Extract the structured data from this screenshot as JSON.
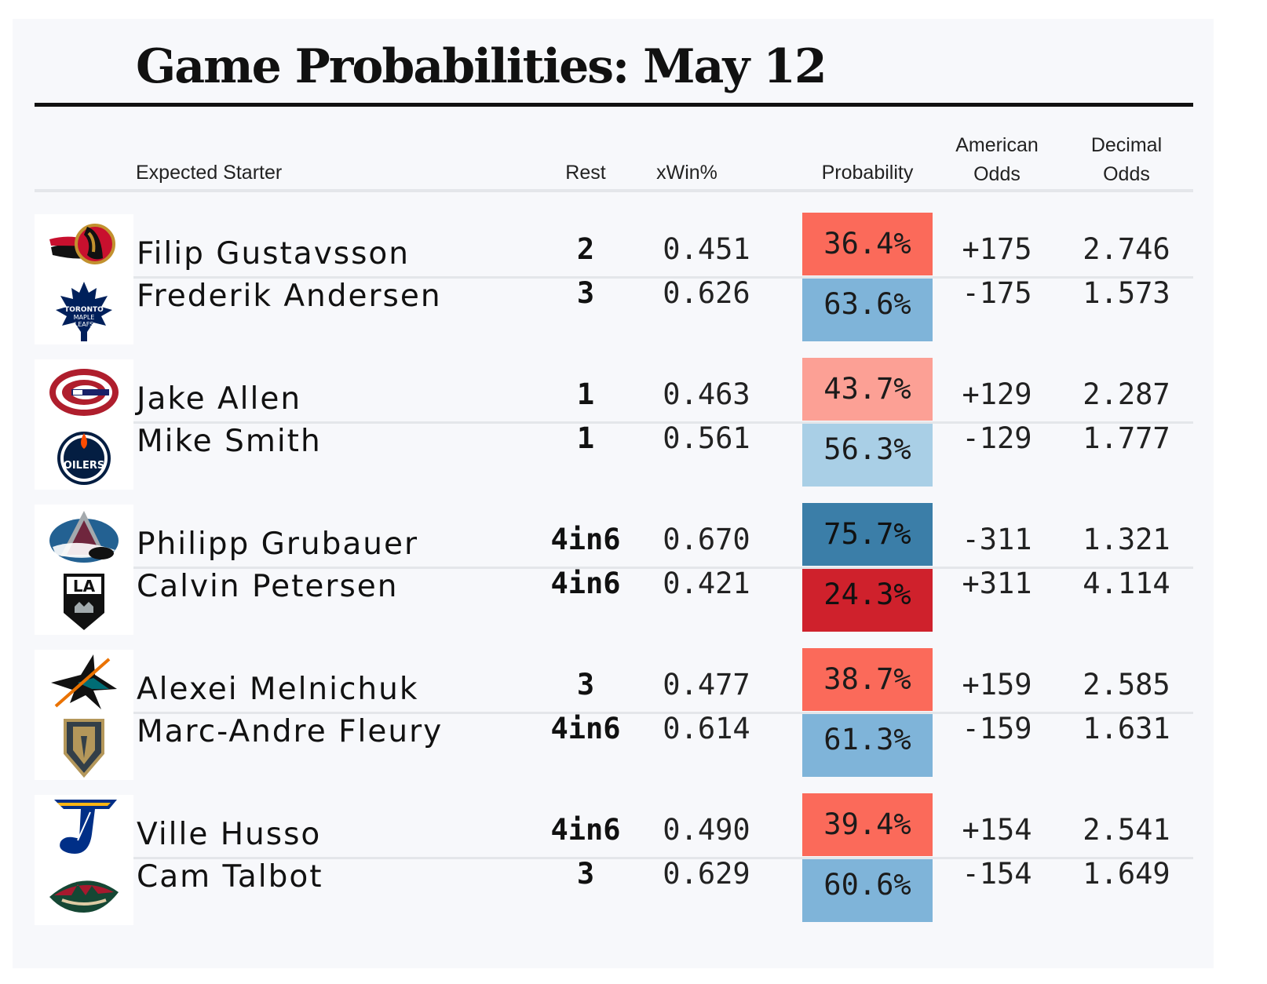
{
  "chart_data": {
    "type": "table",
    "title": "Game Probabilities: May 12",
    "headers": {
      "starter": "Expected Starter",
      "rest": "Rest",
      "xwin": "xWin%",
      "probability": "Probability",
      "american_1": "American",
      "american_2": "Odds",
      "decimal_1": "Decimal",
      "decimal_2": "Odds"
    },
    "games": [
      {
        "rows": [
          {
            "team_logo": "ottawa-senators-logo",
            "name": "Filip Gustavsson",
            "rest": "2",
            "xwin": "0.451",
            "probability": "36.4%",
            "probability_value": 36.4,
            "color": "#fb6a5a",
            "american": "+175",
            "decimal": "2.746"
          },
          {
            "team_logo": "toronto-maple-leafs-logo",
            "name": "Frederik Andersen",
            "rest": "3",
            "xwin": "0.626",
            "probability": "63.6%",
            "probability_value": 63.6,
            "color": "#7fb4d9",
            "american": "-175",
            "decimal": "1.573"
          }
        ]
      },
      {
        "rows": [
          {
            "team_logo": "montreal-canadiens-logo",
            "name": "Jake Allen",
            "rest": "1",
            "xwin": "0.463",
            "probability": "43.7%",
            "probability_value": 43.7,
            "color": "#fca095",
            "american": "+129",
            "decimal": "2.287"
          },
          {
            "team_logo": "edmonton-oilers-logo",
            "name": "Mike Smith",
            "rest": "1",
            "xwin": "0.561",
            "probability": "56.3%",
            "probability_value": 56.3,
            "color": "#a9cfe6",
            "american": "-129",
            "decimal": "1.777"
          }
        ]
      },
      {
        "rows": [
          {
            "team_logo": "colorado-avalanche-logo",
            "name": "Philipp Grubauer",
            "rest": "4in6",
            "xwin": "0.670",
            "probability": "75.7%",
            "probability_value": 75.7,
            "color": "#3b7ea8",
            "american": "-311",
            "decimal": "1.321"
          },
          {
            "team_logo": "los-angeles-kings-logo",
            "name": "Calvin Petersen",
            "rest": "4in6",
            "xwin": "0.421",
            "probability": "24.3%",
            "probability_value": 24.3,
            "color": "#cf212c",
            "american": "+311",
            "decimal": "4.114"
          }
        ]
      },
      {
        "rows": [
          {
            "team_logo": "san-jose-sharks-logo",
            "name": "Alexei Melnichuk",
            "rest": "3",
            "xwin": "0.477",
            "probability": "38.7%",
            "probability_value": 38.7,
            "color": "#fb6a5a",
            "american": "+159",
            "decimal": "2.585"
          },
          {
            "team_logo": "vegas-golden-knights-logo",
            "name": "Marc-Andre Fleury",
            "rest": "4in6",
            "xwin": "0.614",
            "probability": "61.3%",
            "probability_value": 61.3,
            "color": "#7fb4d9",
            "american": "-159",
            "decimal": "1.631"
          }
        ]
      },
      {
        "rows": [
          {
            "team_logo": "st-louis-blues-logo",
            "name": "Ville Husso",
            "rest": "4in6",
            "xwin": "0.490",
            "probability": "39.4%",
            "probability_value": 39.4,
            "color": "#fb6a5a",
            "american": "+154",
            "decimal": "2.541"
          },
          {
            "team_logo": "minnesota-wild-logo",
            "name": "Cam Talbot",
            "rest": "3",
            "xwin": "0.629",
            "probability": "60.6%",
            "probability_value": 60.6,
            "color": "#7fb4d9",
            "american": "-154",
            "decimal": "1.649"
          }
        ]
      }
    ]
  }
}
